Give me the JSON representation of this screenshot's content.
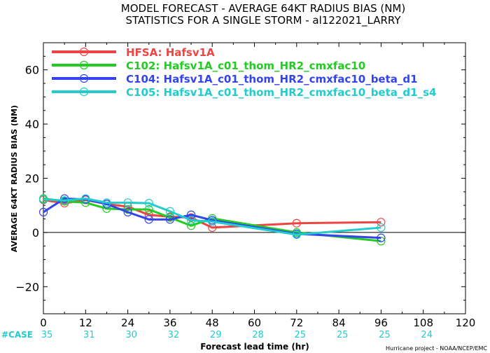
{
  "chart_data": {
    "type": "line",
    "title": "MODEL FORECAST - AVERAGE 64KT RADIUS BIAS (NM)",
    "subtitle": "STATISTICS FOR A SINGLE STORM - al122021_LARRY",
    "xlabel": "Forecast lead time (hr)",
    "ylabel": "AVERAGE 64KT RADIUS BIAS (NM)",
    "xlim": [
      0,
      120
    ],
    "ylim": [
      -30,
      70
    ],
    "xticks": [
      0,
      12,
      24,
      36,
      48,
      60,
      72,
      84,
      96,
      108,
      120
    ],
    "yticks": [
      -20,
      0,
      20,
      40,
      60
    ],
    "zero_line": true,
    "grid": false,
    "legend_position": "top-left",
    "case_label": "#CASE",
    "cases": [
      {
        "x": 0,
        "n": 35
      },
      {
        "x": 12,
        "n": 31
      },
      {
        "x": 24,
        "n": 30
      },
      {
        "x": 36,
        "n": 32
      },
      {
        "x": 48,
        "n": 29
      },
      {
        "x": 60,
        "n": 28
      },
      {
        "x": 72,
        "n": 25
      },
      {
        "x": 84,
        "n": 25
      },
      {
        "x": 96,
        "n": 25
      },
      {
        "x": 108,
        "n": 24
      }
    ],
    "series": [
      {
        "name": "HFSA",
        "label": "Hafsv1A",
        "color": "#ee4444",
        "points": [
          [
            0,
            12.0
          ],
          [
            6,
            10.8
          ],
          [
            12,
            12.0
          ],
          [
            18,
            10.5
          ],
          [
            24,
            9.5
          ],
          [
            30,
            6.5
          ],
          [
            36,
            5.8
          ],
          [
            42,
            5.5
          ],
          [
            48,
            1.8
          ],
          [
            72,
            3.4
          ],
          [
            96,
            3.8
          ]
        ]
      },
      {
        "name": "C102",
        "label": "Hafsv1A_c01_thom_HR2_cmxfac10",
        "color": "#22cc22",
        "points": [
          [
            0,
            12.5
          ],
          [
            6,
            11.5
          ],
          [
            12,
            11.0
          ],
          [
            18,
            8.8
          ],
          [
            24,
            8.5
          ],
          [
            30,
            8.5
          ],
          [
            36,
            5.5
          ],
          [
            42,
            2.5
          ],
          [
            48,
            5.2
          ],
          [
            72,
            0.0
          ],
          [
            96,
            -3.2
          ]
        ]
      },
      {
        "name": "C104",
        "label": "Hafsv1A_c01_thom_HR2_cmxfac10_beta_d1",
        "color": "#3344ee",
        "points": [
          [
            0,
            7.5
          ],
          [
            6,
            12.5
          ],
          [
            12,
            12.2
          ],
          [
            18,
            10.5
          ],
          [
            24,
            7.5
          ],
          [
            30,
            4.8
          ],
          [
            36,
            4.8
          ],
          [
            42,
            6.5
          ],
          [
            48,
            4.5
          ],
          [
            72,
            -0.5
          ],
          [
            96,
            -2.0
          ]
        ]
      },
      {
        "name": "C105",
        "label": "Hafsv1A_c01_thom_HR2_cmxfac10_beta_d1_s4",
        "color": "#22cccc",
        "points": [
          [
            0,
            12.2
          ],
          [
            6,
            11.8
          ],
          [
            12,
            12.5
          ],
          [
            18,
            11.0
          ],
          [
            24,
            11.0
          ],
          [
            30,
            10.8
          ],
          [
            36,
            7.8
          ],
          [
            42,
            4.5
          ],
          [
            48,
            4.0
          ],
          [
            72,
            -0.8
          ],
          [
            96,
            1.8
          ]
        ]
      }
    ]
  },
  "footer": {
    "credit": "Hurricane project - NOAA/NCEP/EMC"
  },
  "colors": {
    "case_text": "#22cccc",
    "axis": "#000000",
    "background": "#ffffff"
  }
}
